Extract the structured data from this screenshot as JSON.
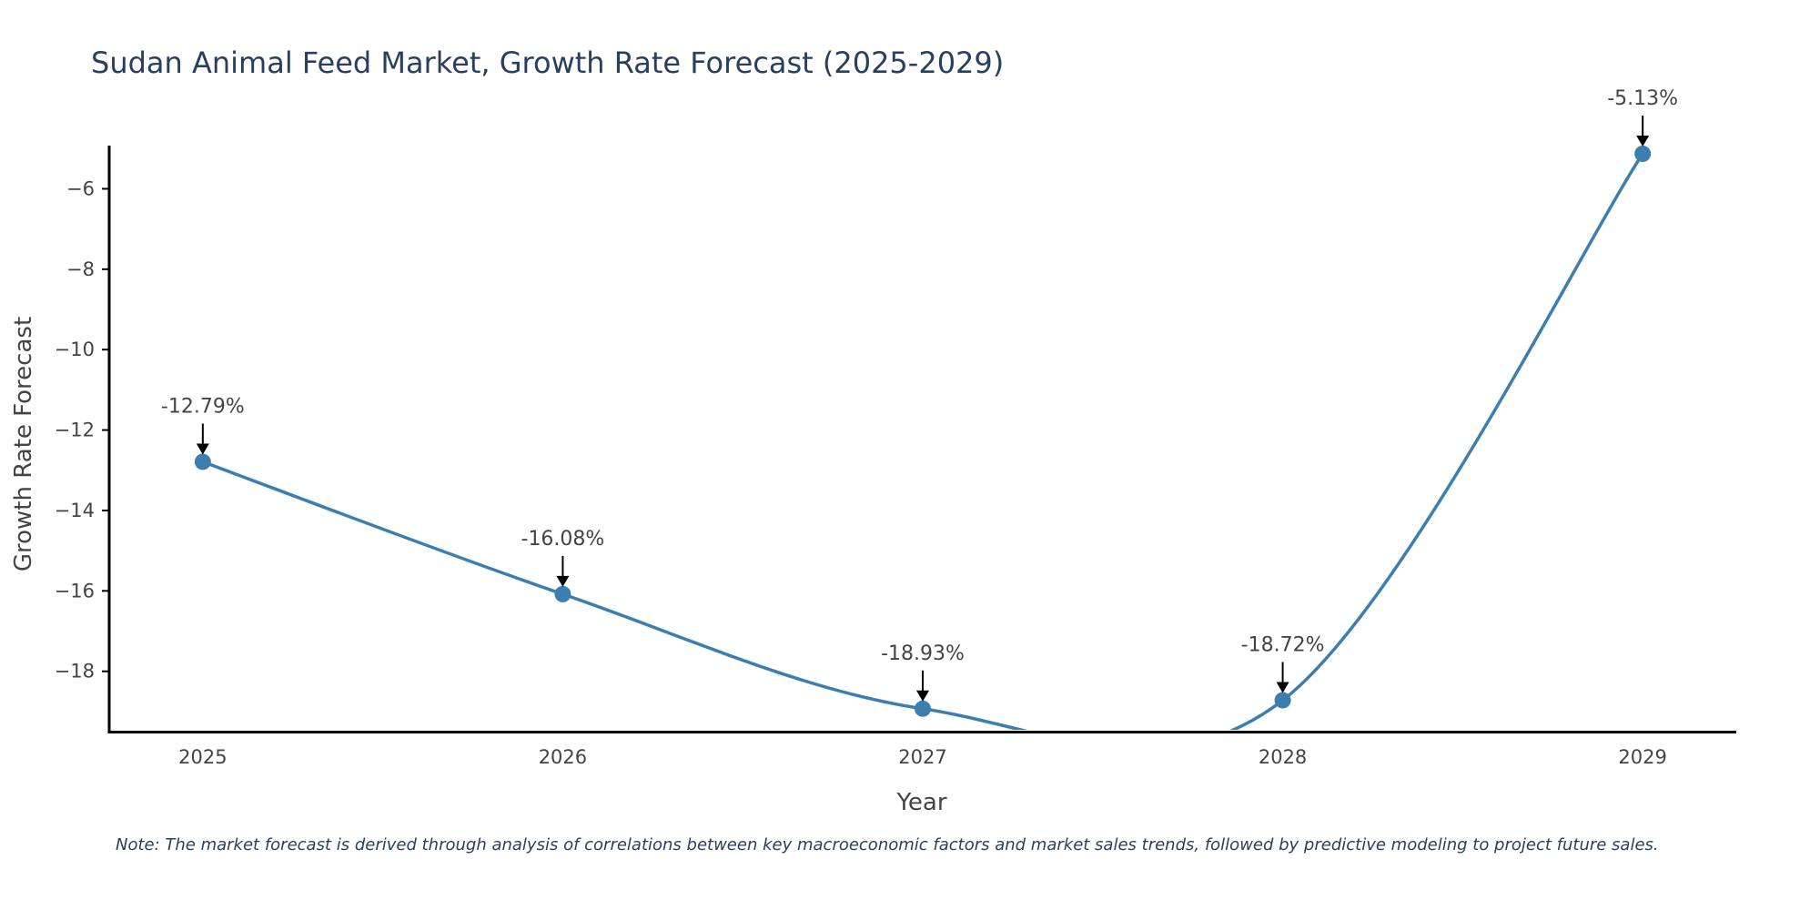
{
  "chart_data": {
    "type": "line",
    "title": "Sudan Animal Feed Market, Growth Rate Forecast (2025-2029)",
    "xlabel": "Year",
    "ylabel": "Growth Rate Forecast",
    "x": [
      2025,
      2026,
      2027,
      2028,
      2029
    ],
    "x_tick_labels": [
      "2025",
      "2026",
      "2027",
      "2028",
      "2029"
    ],
    "y_ticks": [
      -18,
      -16,
      -14,
      -12,
      -10,
      -8,
      -6
    ],
    "y_tick_labels": [
      "−18",
      "−16",
      "−14",
      "−12",
      "−10",
      "−8",
      "−6"
    ],
    "series": [
      {
        "name": "Growth Rate Forecast",
        "values": [
          -12.79,
          -16.08,
          -18.93,
          -18.72,
          -5.13
        ],
        "labels": [
          "-12.79%",
          "-16.08%",
          "-18.93%",
          "-18.72%",
          "-5.13%"
        ],
        "color": "#3d7eb0"
      }
    ],
    "xlim": [
      2024.74,
      2029.26
    ],
    "ylim": [
      -19.5,
      -4.7
    ],
    "grid": false,
    "line_shape": "spline"
  },
  "note": "Note: The market forecast is derived through analysis of correlations between key macroeconomic factors and market sales trends, followed by predictive modeling to project future sales."
}
